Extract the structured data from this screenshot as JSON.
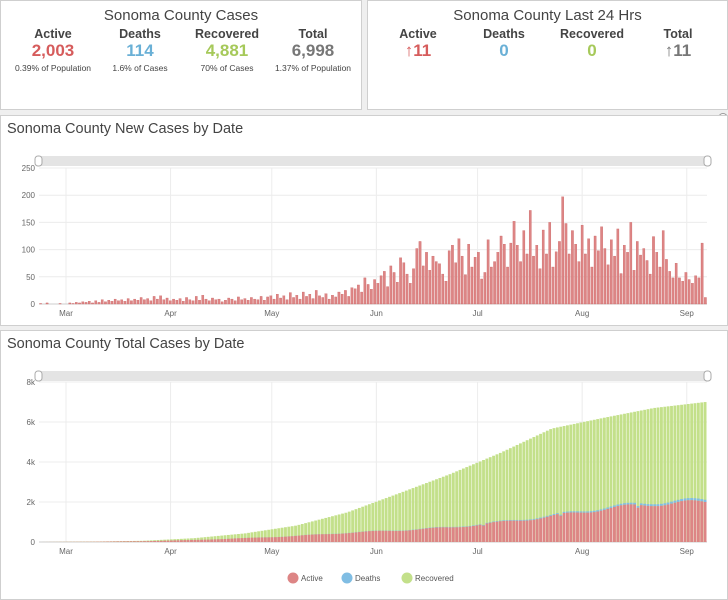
{
  "cases_panel": {
    "title": "Sonoma County Cases",
    "stats": [
      {
        "label": "Active",
        "value": "2,003",
        "sub": "0.39% of Population",
        "color": "#d65c5c"
      },
      {
        "label": "Deaths",
        "value": "114",
        "sub": "1.6% of Cases",
        "color": "#6ab0d6"
      },
      {
        "label": "Recovered",
        "value": "4,881",
        "sub": "70% of Cases",
        "color": "#a6c95a"
      },
      {
        "label": "Total",
        "value": "6,998",
        "sub": "1.37% of Population",
        "color": "#777777"
      }
    ]
  },
  "last24_panel": {
    "title": "Sonoma County Last 24 Hrs",
    "stats": [
      {
        "label": "Active",
        "value": "↑11",
        "color": "#d65c5c"
      },
      {
        "label": "Deaths",
        "value": "0",
        "color": "#6ab0d6"
      },
      {
        "label": "Recovered",
        "value": "0",
        "color": "#a6c95a"
      },
      {
        "label": "Total",
        "value": "↑11",
        "color": "#777777"
      }
    ]
  },
  "colors": {
    "active": "#dd8585",
    "active_edge": "#c85e5e",
    "deaths": "#80bde3",
    "recovered": "#c3e08a",
    "grid": "#ececec",
    "axis_text": "#666666"
  },
  "chart_data": [
    {
      "type": "bar",
      "title": "Sonoma County New Cases by Date",
      "x_ticks": [
        "Mar",
        "Apr",
        "May",
        "Jun",
        "Jul",
        "Aug",
        "Sep"
      ],
      "y_ticks": [
        "0",
        "50",
        "100",
        "150",
        "200",
        "250"
      ],
      "ylim": [
        0,
        250
      ],
      "x_start": "2020-02-22",
      "values": [
        1,
        0,
        2,
        0,
        0,
        0,
        1,
        0,
        0,
        2,
        1,
        3,
        2,
        4,
        3,
        5,
        2,
        6,
        3,
        8,
        4,
        7,
        5,
        9,
        6,
        8,
        5,
        10,
        6,
        9,
        7,
        12,
        8,
        10,
        6,
        14,
        9,
        15,
        8,
        11,
        6,
        9,
        7,
        10,
        5,
        12,
        8,
        6,
        14,
        7,
        16,
        9,
        6,
        11,
        8,
        9,
        4,
        7,
        11,
        9,
        6,
        13,
        8,
        10,
        7,
        12,
        9,
        8,
        14,
        7,
        13,
        15,
        9,
        18,
        11,
        15,
        8,
        21,
        12,
        16,
        9,
        22,
        14,
        18,
        10,
        25,
        15,
        12,
        19,
        9,
        16,
        13,
        22,
        18,
        25,
        14,
        30,
        28,
        35,
        22,
        48,
        36,
        27,
        45,
        38,
        52,
        60,
        32,
        70,
        58,
        40,
        85,
        76,
        55,
        38,
        65,
        102,
        115,
        70,
        95,
        62,
        88,
        78,
        74,
        55,
        42,
        98,
        108,
        76,
        120,
        88,
        54,
        110,
        68,
        86,
        95,
        46,
        58,
        118,
        68,
        78,
        95,
        125,
        110,
        68,
        112,
        152,
        108,
        78,
        135,
        92,
        172,
        88,
        108,
        65,
        136,
        92,
        150,
        68,
        96,
        115,
        197,
        148,
        92,
        135,
        110,
        78,
        145,
        92,
        120,
        68,
        125,
        98,
        142,
        102,
        72,
        118,
        88,
        138,
        56,
        108,
        95,
        150,
        62,
        115,
        90,
        102,
        80,
        55,
        124,
        95,
        68,
        135,
        82,
        60,
        48,
        75,
        48,
        42,
        58,
        45,
        38,
        52,
        48,
        112,
        12
      ],
      "xlabel": "",
      "ylabel": "",
      "grid": true
    },
    {
      "type": "bar",
      "title": "Sonoma County Total Cases by Date",
      "x_ticks": [
        "Mar",
        "Apr",
        "May",
        "Jun",
        "Jul",
        "Aug",
        "Sep"
      ],
      "y_ticks": [
        "0",
        "2k",
        "4k",
        "6k",
        "8k"
      ],
      "ylim": [
        0,
        8000
      ],
      "x_start": "2020-02-22",
      "stacked": true,
      "totals": [
        0,
        20,
        60,
        190,
        430,
        820,
        1480,
        2420,
        3380,
        4460,
        5670,
        6200,
        6700,
        6998
      ],
      "active": [
        0,
        15,
        40,
        100,
        190,
        300,
        460,
        580,
        720,
        980,
        1280,
        1650,
        1900,
        2003
      ],
      "deaths": [
        0,
        0,
        1,
        3,
        5,
        8,
        12,
        16,
        22,
        32,
        50,
        70,
        95,
        114
      ],
      "legend": [
        "Active",
        "Deaths",
        "Recovered"
      ],
      "legend_position": "bottom",
      "xlabel": "",
      "ylabel": "",
      "grid": true
    }
  ]
}
